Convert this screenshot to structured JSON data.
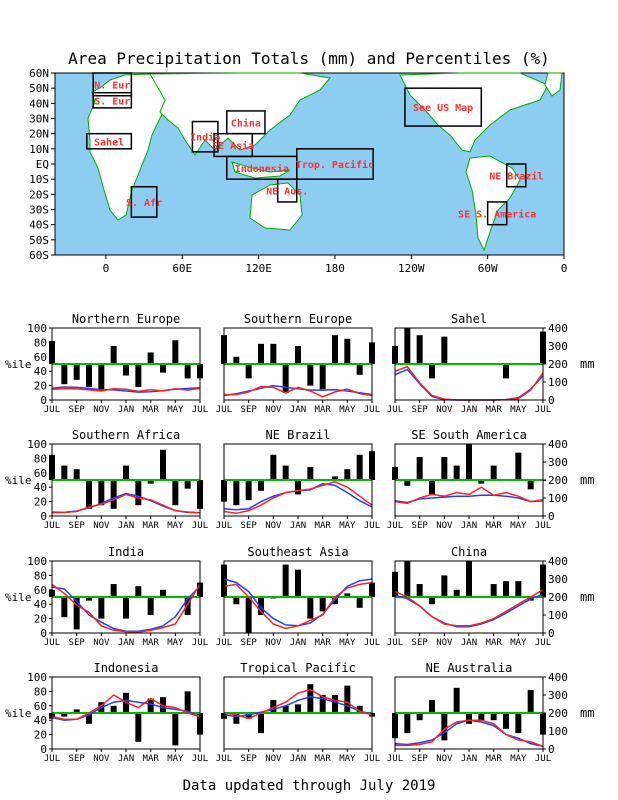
{
  "title": "Area Precipitation Totals (mm) and Percentiles (%)",
  "footer": "Data updated through July 2019",
  "colors": {
    "bars": "#000000",
    "percentile_line": "#00bb00",
    "observed": "#ff2020",
    "normal": "#2040ff",
    "ocean": "#8ecdf2",
    "land": "#ffffff",
    "coast": "#00aa00",
    "box_label": "#ff3030"
  },
  "map": {
    "lat_labels": [
      "60N",
      "50N",
      "40N",
      "30N",
      "20N",
      "10N",
      "EQ",
      "10S",
      "20S",
      "30S",
      "40S",
      "50S",
      "60S"
    ],
    "lon_labels": [
      "0",
      "60E",
      "120E",
      "180",
      "120W",
      "60W",
      "0"
    ],
    "regions": [
      {
        "label": "N. Eur",
        "lon": [
          -10,
          20
        ],
        "lat": [
          45,
          60
        ]
      },
      {
        "label": "S. Eur",
        "lon": [
          -10,
          20
        ],
        "lat": [
          37,
          47
        ]
      },
      {
        "label": "Sahel",
        "lon": [
          -15,
          20
        ],
        "lat": [
          10,
          20
        ]
      },
      {
        "label": "S. Afr",
        "lon": [
          20,
          40
        ],
        "lat": [
          -35,
          -15
        ]
      },
      {
        "label": "India",
        "lon": [
          68,
          88
        ],
        "lat": [
          8,
          28
        ]
      },
      {
        "label": "SE Asia",
        "lon": [
          85,
          115
        ],
        "lat": [
          5,
          20
        ]
      },
      {
        "label": "China",
        "lon": [
          95,
          125
        ],
        "lat": [
          20,
          35
        ]
      },
      {
        "label": "Indonesia",
        "lon": [
          95,
          150
        ],
        "lat": [
          -10,
          5
        ]
      },
      {
        "label": "Trop. Pacific",
        "lon": [
          150,
          210
        ],
        "lat": [
          -10,
          10
        ]
      },
      {
        "label": "NE Aus.",
        "lon": [
          135,
          150
        ],
        "lat": [
          -25,
          -10
        ]
      },
      {
        "label": "See US Map",
        "lon": [
          235,
          295
        ],
        "lat": [
          25,
          50
        ]
      },
      {
        "label": "NE Brazil",
        "lon": [
          315,
          330
        ],
        "lat": [
          -15,
          0
        ]
      },
      {
        "label": "SE S. America",
        "lon": [
          300,
          315
        ],
        "lat": [
          -40,
          -25
        ]
      }
    ]
  },
  "panel_axes": {
    "month_labels": [
      "JUL",
      "SEP",
      "NOV",
      "JAN",
      "MAR",
      "MAY",
      "JUL"
    ],
    "pct_ticks": [
      "0",
      "20",
      "40",
      "60",
      "80",
      "100"
    ],
    "mm_ticks": [
      "0",
      "100",
      "200",
      "300",
      "400"
    ],
    "pct_label": "%ile",
    "mm_label": "mm"
  },
  "chart_data": [
    {
      "type": "bar",
      "title": "Northern Europe",
      "ylabel": "%ile",
      "ylim": [
        0,
        100
      ],
      "y2lim": [
        0,
        400
      ],
      "y2label": "mm",
      "percentiles": [
        82,
        22,
        28,
        18,
        12,
        75,
        34,
        18,
        66,
        38,
        83,
        30,
        30
      ],
      "observed_mm": [
        60,
        62,
        62,
        56,
        50,
        62,
        60,
        48,
        58,
        50,
        62,
        55,
        65
      ],
      "normal_mm": [
        65,
        72,
        70,
        64,
        58,
        56,
        50,
        44,
        46,
        52,
        60,
        64,
        68
      ]
    },
    {
      "type": "bar",
      "title": "Southern Europe",
      "ylabel": "%ile",
      "ylim": [
        0,
        100
      ],
      "y2lim": [
        0,
        400
      ],
      "y2label": "mm",
      "percentiles": [
        90,
        60,
        30,
        78,
        78,
        10,
        75,
        20,
        15,
        90,
        85,
        35,
        80
      ],
      "observed_mm": [
        30,
        30,
        45,
        75,
        70,
        40,
        70,
        50,
        18,
        45,
        60,
        35,
        25
      ],
      "normal_mm": [
        25,
        35,
        50,
        65,
        80,
        70,
        62,
        55,
        55,
        58,
        50,
        40,
        30
      ]
    },
    {
      "type": "bar",
      "title": "Sahel",
      "ylabel": "%ile",
      "ylim": [
        0,
        100
      ],
      "y2lim": [
        0,
        400
      ],
      "y2label": "mm",
      "percentiles": [
        75,
        100,
        90,
        30,
        88,
        50,
        50,
        50,
        50,
        30,
        50,
        50,
        95
      ],
      "observed_mm": [
        160,
        185,
        95,
        25,
        5,
        0,
        0,
        0,
        0,
        2,
        8,
        55,
        150
      ],
      "normal_mm": [
        140,
        170,
        90,
        20,
        2,
        0,
        0,
        0,
        0,
        2,
        12,
        60,
        135
      ]
    },
    {
      "type": "bar",
      "title": "Southern Africa",
      "ylabel": "%ile",
      "ylim": [
        0,
        100
      ],
      "y2lim": [
        0,
        400
      ],
      "y2label": "mm",
      "percentiles": [
        85,
        70,
        65,
        10,
        15,
        10,
        70,
        15,
        45,
        92,
        15,
        38,
        10
      ],
      "observed_mm": [
        22,
        20,
        25,
        50,
        65,
        90,
        120,
        100,
        90,
        60,
        30,
        22,
        18
      ],
      "normal_mm": [
        18,
        20,
        28,
        45,
        70,
        100,
        125,
        110,
        85,
        55,
        30,
        20,
        18
      ]
    },
    {
      "type": "bar",
      "title": "NE Brazil",
      "ylabel": "%ile",
      "ylim": [
        0,
        100
      ],
      "y2lim": [
        0,
        400
      ],
      "y2label": "mm",
      "percentiles": [
        20,
        15,
        22,
        35,
        85,
        70,
        30,
        68,
        50,
        55,
        65,
        85,
        90
      ],
      "observed_mm": [
        25,
        15,
        30,
        60,
        100,
        130,
        140,
        150,
        170,
        190,
        160,
        110,
        60
      ],
      "normal_mm": [
        40,
        35,
        40,
        80,
        110,
        130,
        140,
        145,
        180,
        170,
        130,
        85,
        50
      ]
    },
    {
      "type": "bar",
      "title": "SE South America",
      "ylabel": "%ile",
      "ylim": [
        0,
        100
      ],
      "y2lim": [
        0,
        400
      ],
      "y2label": "mm",
      "percentiles": [
        68,
        42,
        82,
        30,
        82,
        70,
        100,
        45,
        70,
        50,
        88,
        37,
        50
      ],
      "observed_mm": [
        80,
        70,
        100,
        120,
        110,
        130,
        120,
        160,
        115,
        130,
        110,
        80,
        90
      ],
      "normal_mm": [
        85,
        75,
        95,
        100,
        105,
        110,
        110,
        115,
        115,
        110,
        100,
        80,
        85
      ]
    },
    {
      "type": "bar",
      "title": "India",
      "ylabel": "%ile",
      "ylim": [
        0,
        100
      ],
      "y2lim": [
        0,
        400
      ],
      "y2label": "mm",
      "percentiles": [
        60,
        22,
        5,
        45,
        20,
        68,
        20,
        65,
        25,
        60,
        50,
        25,
        70
      ],
      "observed_mm": [
        270,
        220,
        155,
        115,
        40,
        15,
        8,
        5,
        15,
        30,
        50,
        160,
        270
      ],
      "normal_mm": [
        255,
        245,
        175,
        100,
        60,
        25,
        10,
        10,
        20,
        40,
        90,
        190,
        260
      ]
    },
    {
      "type": "bar",
      "title": "Southeast Asia",
      "ylabel": "%ile",
      "ylim": [
        0,
        100
      ],
      "y2lim": [
        0,
        400
      ],
      "y2label": "mm",
      "percentiles": [
        95,
        40,
        0,
        25,
        48,
        95,
        88,
        20,
        30,
        40,
        55,
        35,
        70
      ],
      "observed_mm": [
        260,
        270,
        200,
        120,
        50,
        25,
        40,
        70,
        100,
        200,
        250,
        270,
        280
      ],
      "normal_mm": [
        300,
        280,
        230,
        140,
        80,
        45,
        40,
        55,
        105,
        185,
        260,
        290,
        300
      ]
    },
    {
      "type": "bar",
      "title": "China",
      "ylabel": "%ile",
      "ylim": [
        0,
        100
      ],
      "y2lim": [
        0,
        400
      ],
      "y2label": "mm",
      "percentiles": [
        85,
        100,
        68,
        40,
        80,
        60,
        100,
        50,
        68,
        72,
        72,
        45,
        95
      ],
      "observed_mm": [
        230,
        200,
        150,
        90,
        50,
        40,
        40,
        55,
        80,
        120,
        160,
        200,
        240
      ],
      "normal_mm": [
        210,
        190,
        150,
        90,
        55,
        35,
        35,
        50,
        75,
        110,
        150,
        190,
        215
      ]
    },
    {
      "type": "bar",
      "title": "Indonesia",
      "ylabel": "%ile",
      "ylim": [
        0,
        100
      ],
      "y2lim": [
        0,
        400
      ],
      "y2label": "mm",
      "percentiles": [
        42,
        45,
        55,
        35,
        65,
        60,
        78,
        10,
        70,
        72,
        5,
        80,
        20
      ],
      "observed_mm": [
        180,
        165,
        165,
        200,
        240,
        300,
        260,
        230,
        280,
        240,
        230,
        200,
        180
      ],
      "normal_mm": [
        175,
        160,
        165,
        190,
        230,
        260,
        270,
        260,
        250,
        230,
        220,
        210,
        180
      ]
    },
    {
      "type": "bar",
      "title": "Tropical Pacific",
      "ylabel": "%ile",
      "ylim": [
        0,
        100
      ],
      "y2lim": [
        0,
        400
      ],
      "y2label": "mm",
      "percentiles": [
        42,
        35,
        42,
        22,
        68,
        60,
        62,
        90,
        75,
        75,
        88,
        60,
        45
      ],
      "observed_mm": [
        200,
        190,
        170,
        200,
        230,
        260,
        310,
        330,
        290,
        270,
        260,
        210,
        190
      ],
      "normal_mm": [
        190,
        180,
        190,
        205,
        220,
        240,
        270,
        290,
        280,
        260,
        240,
        210,
        195
      ]
    },
    {
      "type": "bar",
      "title": "NE Australia",
      "ylabel": "%ile",
      "ylim": [
        0,
        100
      ],
      "y2lim": [
        0,
        400
      ],
      "y2label": "mm",
      "percentiles": [
        15,
        22,
        40,
        68,
        12,
        85,
        35,
        40,
        40,
        28,
        22,
        82,
        20
      ],
      "observed_mm": [
        20,
        20,
        25,
        40,
        110,
        150,
        160,
        160,
        140,
        80,
        50,
        40,
        15
      ],
      "normal_mm": [
        30,
        25,
        35,
        50,
        90,
        140,
        160,
        150,
        130,
        80,
        60,
        30,
        15
      ]
    }
  ]
}
